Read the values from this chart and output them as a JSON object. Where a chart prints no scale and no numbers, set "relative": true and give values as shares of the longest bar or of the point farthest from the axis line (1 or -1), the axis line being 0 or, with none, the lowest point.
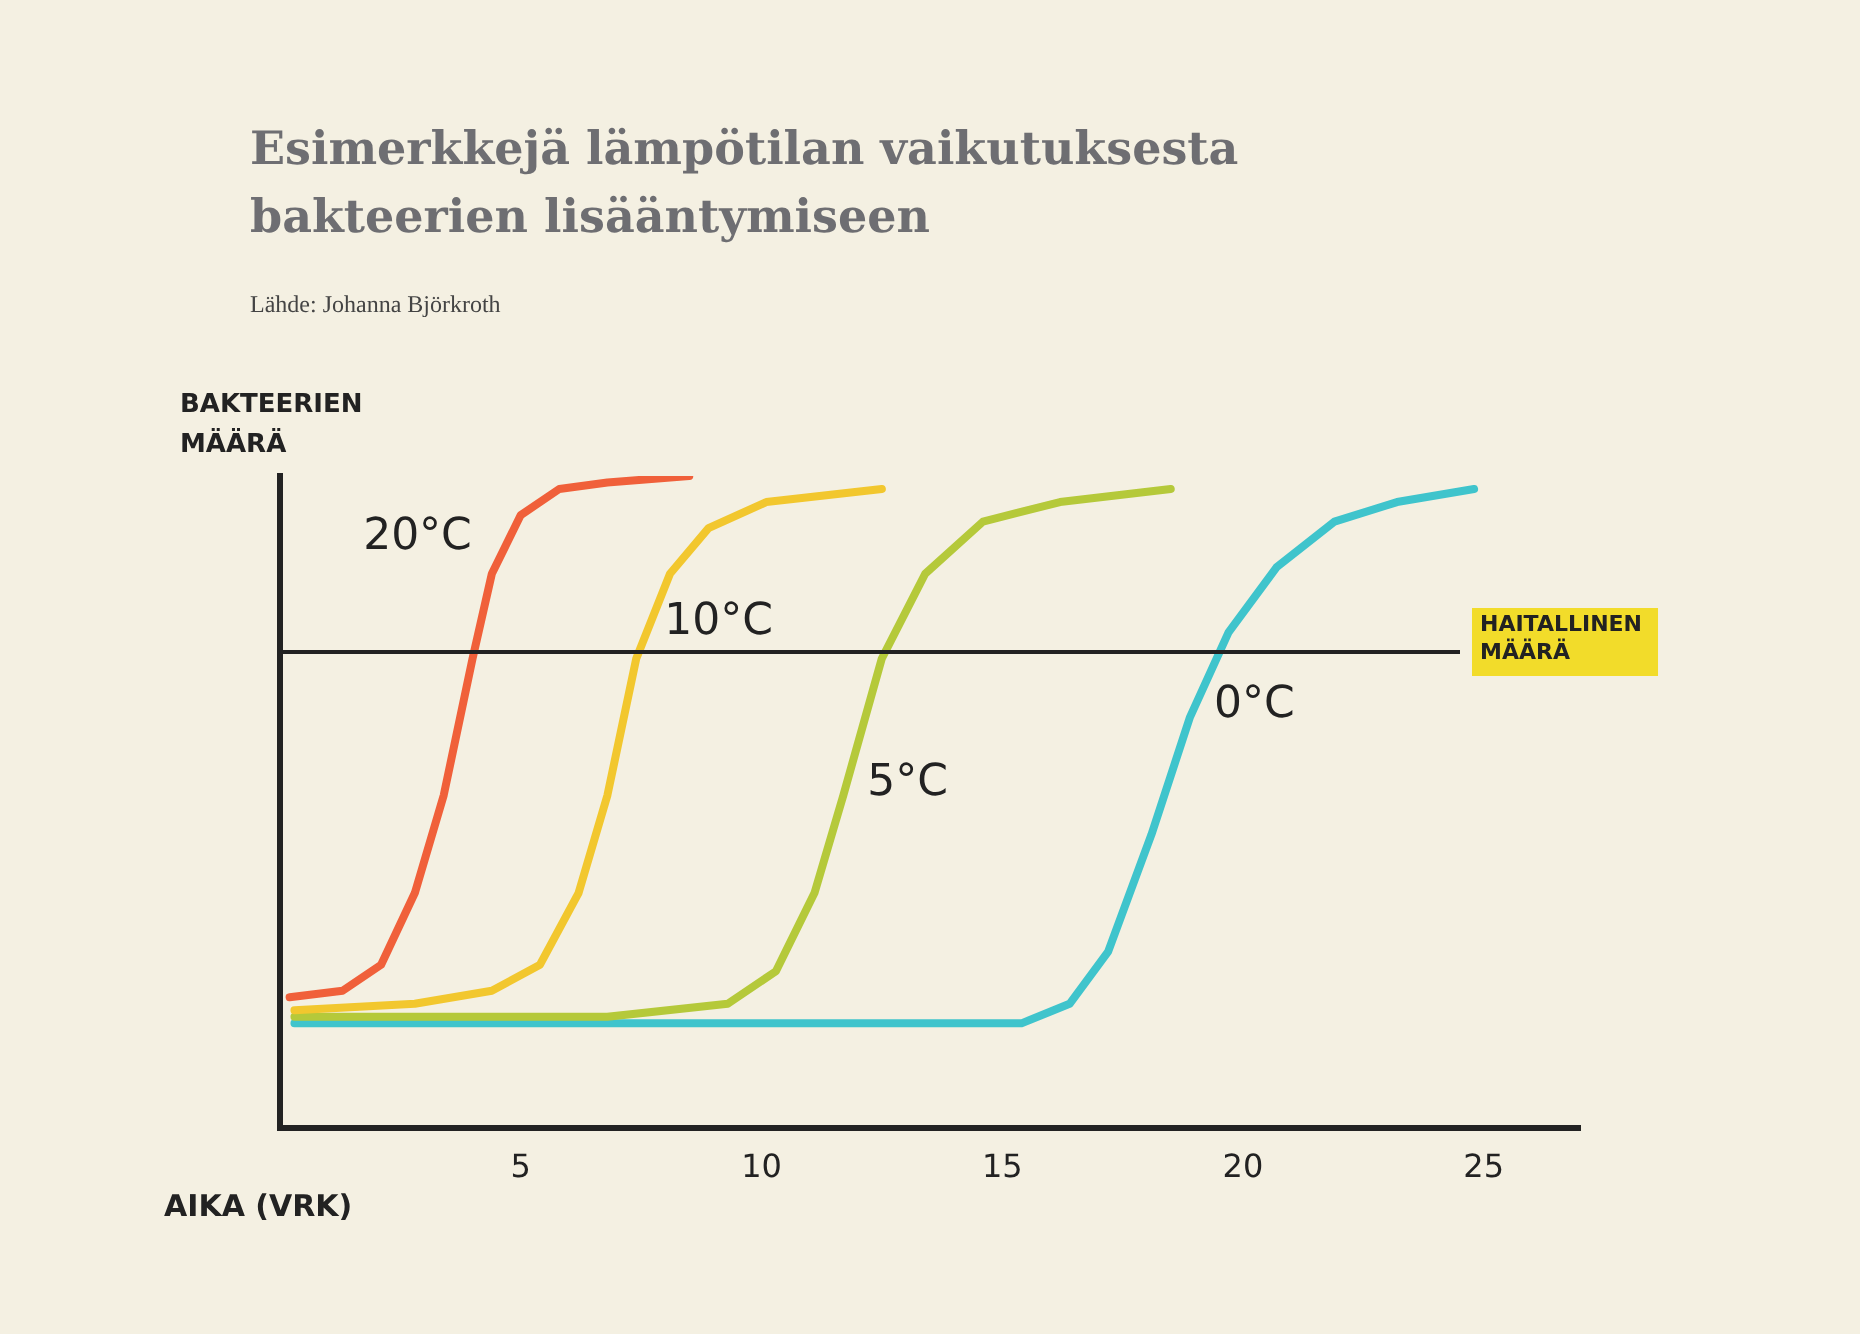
{
  "chart_data": {
    "type": "line",
    "title": "Esimerkkejä lämpötilan vaikutuksesta bakteerien lisääntymiseen",
    "subtitle": "Lähde: Johanna Björkroth",
    "xlabel": "AIKA (VRK)",
    "ylabel": "BAKTEERIEN MÄÄRÄ",
    "relative": true,
    "xlim": [
      0,
      27
    ],
    "xticks": [
      5,
      10,
      15,
      20,
      25
    ],
    "grid": false,
    "legend": false,
    "marker": "none",
    "line_style": "solid",
    "ref_lines": [
      {
        "axis": "y",
        "value": 0.73,
        "label": "HAITALLINEN MÄÄRÄ",
        "color": "#222222"
      }
    ],
    "series": [
      {
        "name": "20°C",
        "color": "#f0603a",
        "x": [
          0.2,
          1.3,
          2.1,
          2.8,
          3.4,
          4.0,
          4.4,
          5.0,
          5.8,
          6.8,
          8.5
        ],
        "values": [
          0.2,
          0.21,
          0.25,
          0.36,
          0.51,
          0.72,
          0.85,
          0.94,
          0.98,
          0.99,
          1
        ]
      },
      {
        "name": "10°C",
        "color": "#f2c72e",
        "x": [
          0.3,
          2.8,
          4.4,
          5.4,
          6.2,
          6.8,
          7.4,
          8.1,
          8.9,
          10.1,
          12.5
        ],
        "values": [
          0.18,
          0.19,
          0.21,
          0.25,
          0.36,
          0.51,
          0.72,
          0.85,
          0.92,
          0.96,
          0.98
        ]
      },
      {
        "name": "5°C",
        "color": "#b5c93a",
        "x": [
          0.3,
          6.8,
          9.3,
          10.3,
          11.1,
          11.7,
          12.5,
          13.4,
          14.6,
          16.2,
          18.5
        ],
        "values": [
          0.17,
          0.17,
          0.19,
          0.24,
          0.36,
          0.51,
          0.72,
          0.85,
          0.93,
          0.96,
          0.98
        ]
      },
      {
        "name": "0°C",
        "color": "#3fc4cc",
        "x": [
          0.3,
          15.4,
          16.4,
          17.2,
          18.1,
          18.9,
          19.7,
          20.7,
          21.9,
          23.2,
          24.8
        ],
        "values": [
          0.16,
          0.16,
          0.19,
          0.27,
          0.45,
          0.63,
          0.76,
          0.86,
          0.93,
          0.96,
          0.98
        ]
      }
    ]
  }
}
